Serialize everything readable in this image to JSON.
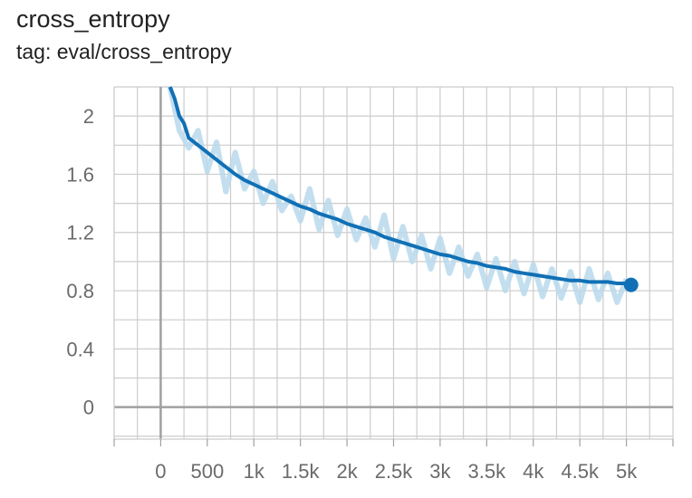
{
  "title": "cross_entropy",
  "subtitle": "tag: eval/cross_entropy",
  "chart_data": {
    "type": "line",
    "title": "cross_entropy",
    "subtitle": "tag: eval/cross_entropy",
    "xlabel": "",
    "ylabel": "",
    "xlim": [
      -500,
      5500
    ],
    "ylim": [
      -0.22,
      2.2
    ],
    "x_ticks": [
      0,
      500,
      1000,
      1500,
      2000,
      2500,
      3000,
      3500,
      4000,
      4500,
      5000
    ],
    "x_tick_labels": [
      "0",
      "500",
      "1k",
      "1.5k",
      "2k",
      "2.5k",
      "3k",
      "3.5k",
      "4k",
      "4.5k",
      "5k"
    ],
    "y_ticks": [
      0,
      0.4,
      0.8,
      1.2,
      1.6,
      2
    ],
    "y_tick_labels": [
      "0",
      "0.4",
      "0.8",
      "1.2",
      "1.6",
      "2"
    ],
    "grid": true,
    "colors": {
      "smoothed": "#1170b5",
      "raw": "#b9d9ec",
      "grid": "#cccccc",
      "axis": "#a0a0a0"
    },
    "series": [
      {
        "role": "smoothed",
        "x": [
          100,
          150,
          200,
          250,
          300,
          400,
          500,
          600,
          700,
          800,
          900,
          1000,
          1100,
          1200,
          1300,
          1400,
          1500,
          1600,
          1700,
          1800,
          1900,
          2000,
          2100,
          2200,
          2300,
          2400,
          2500,
          2600,
          2700,
          2800,
          2900,
          3000,
          3100,
          3200,
          3300,
          3400,
          3500,
          3600,
          3700,
          3800,
          3900,
          4000,
          4100,
          4200,
          4300,
          4400,
          4500,
          4600,
          4700,
          4800,
          4900,
          5000,
          5050
        ],
        "y": [
          2.2,
          2.12,
          2.0,
          1.95,
          1.85,
          1.8,
          1.75,
          1.7,
          1.65,
          1.6,
          1.56,
          1.53,
          1.5,
          1.47,
          1.44,
          1.41,
          1.38,
          1.36,
          1.33,
          1.31,
          1.29,
          1.26,
          1.24,
          1.22,
          1.2,
          1.17,
          1.15,
          1.13,
          1.11,
          1.09,
          1.07,
          1.05,
          1.04,
          1.02,
          1.0,
          0.99,
          0.97,
          0.96,
          0.95,
          0.93,
          0.92,
          0.91,
          0.9,
          0.89,
          0.88,
          0.87,
          0.87,
          0.86,
          0.86,
          0.86,
          0.85,
          0.85,
          0.84
        ]
      },
      {
        "role": "raw",
        "x": [
          100,
          200,
          300,
          400,
          500,
          600,
          700,
          800,
          900,
          1000,
          1100,
          1200,
          1300,
          1400,
          1500,
          1600,
          1700,
          1800,
          1900,
          2000,
          2100,
          2200,
          2300,
          2400,
          2500,
          2600,
          2700,
          2800,
          2900,
          3000,
          3100,
          3200,
          3300,
          3400,
          3500,
          3600,
          3700,
          3800,
          3900,
          4000,
          4100,
          4200,
          4300,
          4400,
          4500,
          4600,
          4700,
          4800,
          4900,
          5000
        ],
        "y": [
          2.2,
          1.9,
          1.78,
          1.9,
          1.62,
          1.82,
          1.48,
          1.75,
          1.5,
          1.62,
          1.4,
          1.55,
          1.35,
          1.45,
          1.28,
          1.5,
          1.22,
          1.42,
          1.18,
          1.36,
          1.15,
          1.3,
          1.1,
          1.32,
          1.02,
          1.24,
          1.0,
          1.18,
          0.95,
          1.16,
          0.92,
          1.1,
          0.9,
          1.05,
          0.82,
          1.02,
          0.8,
          1.0,
          0.78,
          0.98,
          0.76,
          0.95,
          0.75,
          0.93,
          0.72,
          0.95,
          0.74,
          0.92,
          0.72,
          0.88
        ]
      }
    ],
    "final_point": {
      "x": 5050,
      "y": 0.84
    }
  }
}
